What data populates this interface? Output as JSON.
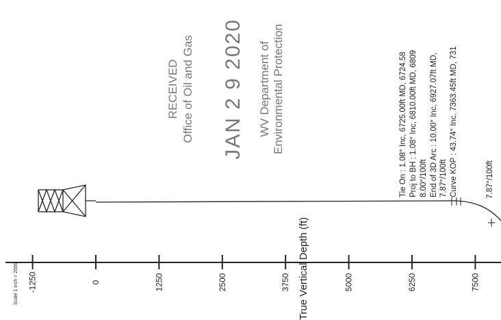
{
  "stamp": {
    "line1": "RECEIVED",
    "line2": "Office of Oil and Gas",
    "date": "JAN 2 9 2020",
    "line3": "WV Department of",
    "line4": "Environmental Protection"
  },
  "annotations": [
    "Tie On : 1.08° Inc, 6725.00ft MD, 6724.58",
    "Proj to BH : 1.08° Inc, 6810.00ft MD, 6809",
    "8.00°/100ft",
    "End of 3D Arc : 10.00° Inc, 6927.07ft MD,",
    "7.87°/100ft",
    "Curve KOP : 43.74° Inc, 7363.45ft MD, 731",
    "7.87°/100ft"
  ],
  "axis": {
    "title": "True Vertical Depth (ft)",
    "scale": "Scale 1 inch = 2500",
    "ticks": [
      -1250,
      0,
      1250,
      2500,
      3750,
      5000,
      6250,
      7500
    ]
  }
}
